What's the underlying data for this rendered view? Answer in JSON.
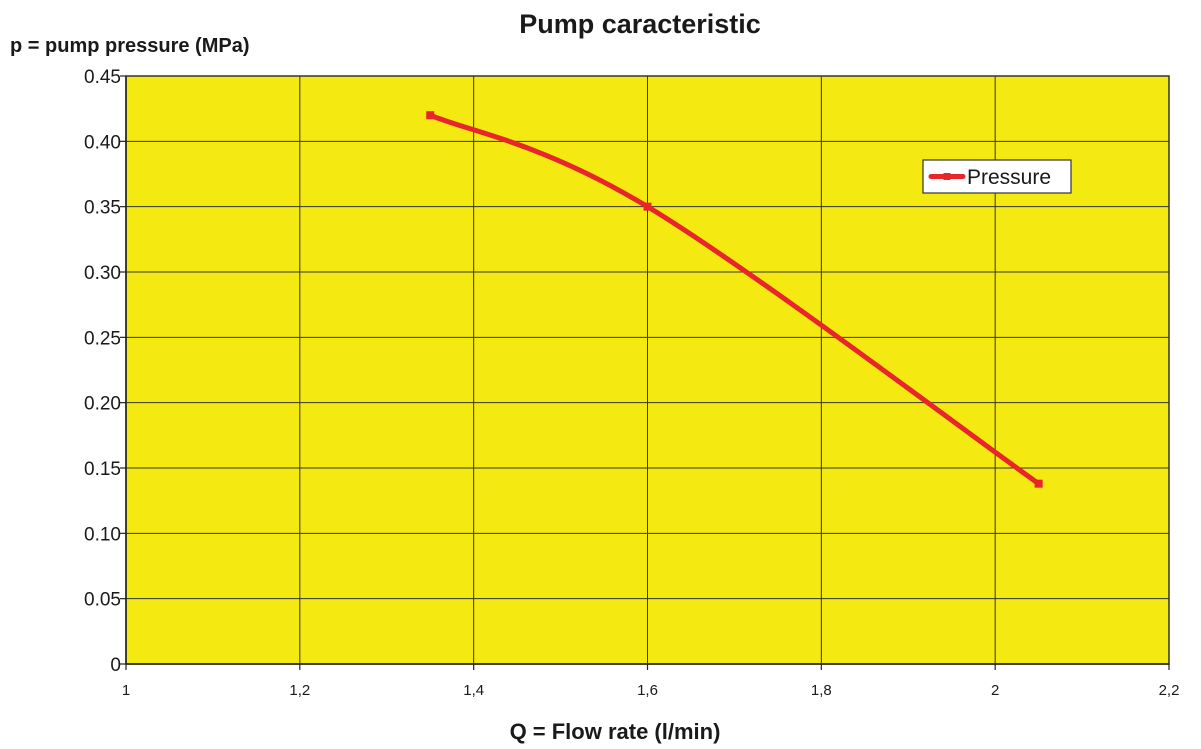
{
  "chart_data": {
    "type": "line",
    "title": "Pump caracteristic",
    "ylabel": "p = pump pressure (MPa)",
    "xlabel": "Q = Flow rate  (l/min)",
    "xlim": [
      1,
      2.2
    ],
    "ylim": [
      0,
      0.45
    ],
    "x_ticks": [
      {
        "value": 1,
        "label": "1"
      },
      {
        "value": 1.2,
        "label": "1,2"
      },
      {
        "value": 1.4,
        "label": "1,4"
      },
      {
        "value": 1.6,
        "label": "1,6"
      },
      {
        "value": 1.8,
        "label": "1,8"
      },
      {
        "value": 2,
        "label": "2"
      },
      {
        "value": 2.2,
        "label": "2,2"
      }
    ],
    "y_ticks": [
      {
        "value": 0,
        "label": "0"
      },
      {
        "value": 0.05,
        "label": "0.05"
      },
      {
        "value": 0.1,
        "label": "0.10"
      },
      {
        "value": 0.15,
        "label": "0.15"
      },
      {
        "value": 0.2,
        "label": "0.20"
      },
      {
        "value": 0.25,
        "label": "0.25"
      },
      {
        "value": 0.3,
        "label": "0.30"
      },
      {
        "value": 0.35,
        "label": "0.35"
      },
      {
        "value": 0.4,
        "label": "0.40"
      },
      {
        "value": 0.45,
        "label": "0.45"
      }
    ],
    "grid": true,
    "plot_background": "#f5e912",
    "legend_position": "top-right",
    "series": [
      {
        "name": "Pressure",
        "color": "#e8252a",
        "smooth": true,
        "points": [
          {
            "x": 1.35,
            "y": 0.42
          },
          {
            "x": 1.6,
            "y": 0.35
          },
          {
            "x": 2.05,
            "y": 0.138
          }
        ]
      }
    ]
  }
}
